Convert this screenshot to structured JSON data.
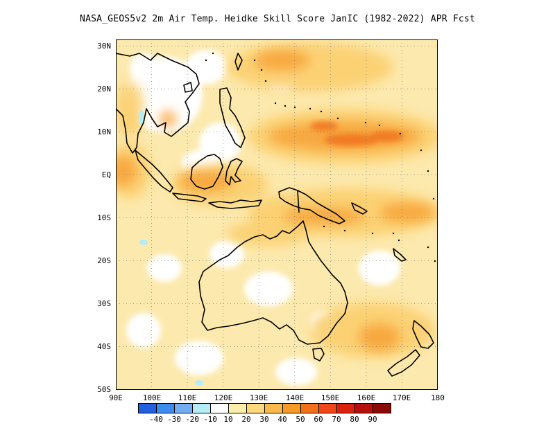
{
  "title": "NASA_GEOS5v2  2m Air Temp. Heidke Skill Score JanIC (1982-2022) APR Fcst",
  "map": {
    "lon_range": [
      90,
      180
    ],
    "lat_range": [
      -50,
      30
    ],
    "grid": "dotted",
    "x_ticks": [
      "90E",
      "100E",
      "110E",
      "120E",
      "130E",
      "140E",
      "150E",
      "160E",
      "170E",
      "180"
    ],
    "y_ticks": [
      "30N",
      "20N",
      "10N",
      "EQ",
      "10S",
      "20S",
      "30S",
      "40S",
      "50S"
    ]
  },
  "colorbar": {
    "colors": [
      "#1f5fe0",
      "#3c8cf0",
      "#74aef2",
      "#b4ecf8",
      "#ffffff",
      "#fbeeaa",
      "#fbd87c",
      "#fbb84c",
      "#f89a26",
      "#f5701a",
      "#f0461a",
      "#d9220e",
      "#b6100a",
      "#8a0a06"
    ],
    "labels": [
      "-40",
      "-30",
      "-20",
      "-10",
      "10",
      "20",
      "30",
      "40",
      "50",
      "60",
      "70",
      "80",
      "90"
    ]
  }
}
